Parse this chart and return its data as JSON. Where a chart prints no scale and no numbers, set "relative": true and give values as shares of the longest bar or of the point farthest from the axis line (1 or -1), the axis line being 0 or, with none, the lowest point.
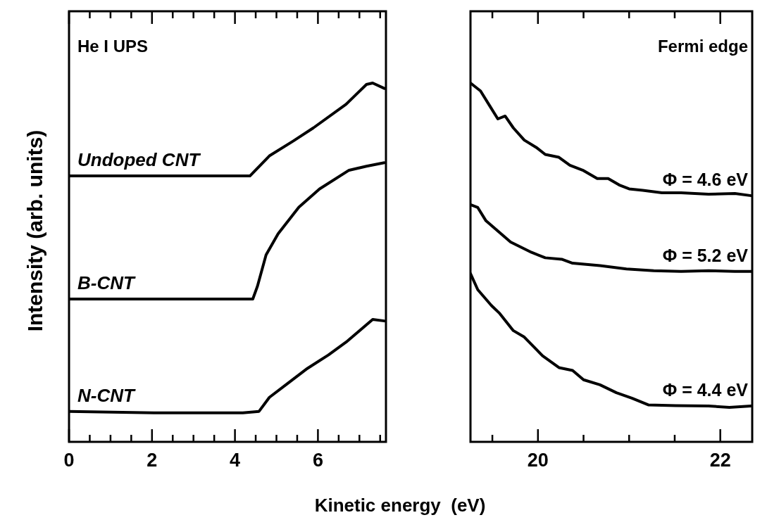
{
  "chart_data": [
    {
      "type": "line",
      "relative": true,
      "xlabel": "Kinetic energy  (eV)",
      "ylabel": "Intensity (arb. units)",
      "annotations": [
        "He I UPS"
      ],
      "marker": "none",
      "line_style": "solid",
      "xlim": [
        0,
        7.64
      ],
      "xticks": [
        0,
        {
          "value": 0.5,
          "label": null
        },
        {
          "value": 1,
          "label": null
        },
        {
          "value": 1.5,
          "label": null
        },
        2,
        {
          "value": 2.5,
          "label": null
        },
        {
          "value": 3,
          "label": null
        },
        {
          "value": 3.5,
          "label": null
        },
        4,
        {
          "value": 4.5,
          "label": null
        },
        {
          "value": 5,
          "label": null
        },
        {
          "value": 5.5,
          "label": null
        },
        6,
        {
          "value": 6.5,
          "label": null
        },
        {
          "value": 7,
          "label": null
        },
        {
          "value": 7.5,
          "label": null
        }
      ],
      "series": [
        {
          "name": "Undoped CNT",
          "color": "#000000",
          "x": [
            0,
            4.36,
            4.83,
            5.4,
            5.89,
            6.68,
            7.17,
            7.32,
            7.6
          ],
          "values": [
            0.741,
            0.741,
            0.797,
            0.838,
            0.875,
            0.941,
            0.996,
            1.0,
            0.985
          ]
        },
        {
          "name": "B-CNT",
          "color": "#000000",
          "x": [
            0,
            4.43,
            4.54,
            4.75,
            5.04,
            5.54,
            6.04,
            6.75,
            7.17,
            7.6
          ],
          "values": [
            0.398,
            0.398,
            0.433,
            0.521,
            0.58,
            0.654,
            0.705,
            0.757,
            0.768,
            0.778
          ]
        },
        {
          "name": "N-CNT",
          "color": "#000000",
          "x": [
            0,
            2.05,
            4.19,
            4.58,
            4.83,
            5.25,
            5.75,
            6.25,
            6.68,
            7.32,
            7.6
          ],
          "values": [
            0.085,
            0.081,
            0.081,
            0.085,
            0.124,
            0.161,
            0.205,
            0.242,
            0.278,
            0.341,
            0.337
          ]
        }
      ]
    },
    {
      "type": "line",
      "relative": true,
      "annotations": [
        "Fermi edge"
      ],
      "marker": "none",
      "line_style": "solid",
      "xlim": [
        19.26,
        22.35
      ],
      "xticks": [
        {
          "value": 19.5,
          "label": null
        },
        20,
        {
          "value": 20.5,
          "label": null
        },
        {
          "value": 21,
          "label": null
        },
        {
          "value": 21.5,
          "label": null
        },
        22
      ],
      "series": [
        {
          "name": "Φ = 4.6 eV",
          "color": "#000000",
          "x": [
            19.26,
            19.37,
            19.46,
            19.56,
            19.64,
            19.73,
            19.85,
            19.99,
            20.08,
            20.23,
            20.35,
            20.5,
            20.65,
            20.77,
            20.89,
            21.0,
            21.15,
            21.36,
            21.57,
            21.87,
            22.16,
            22.34
          ],
          "values": [
            1.0,
            0.978,
            0.941,
            0.9,
            0.908,
            0.875,
            0.841,
            0.819,
            0.801,
            0.793,
            0.771,
            0.756,
            0.734,
            0.734,
            0.716,
            0.705,
            0.701,
            0.694,
            0.694,
            0.69,
            0.692,
            0.686
          ]
        },
        {
          "name": "Φ = 5.2 eV",
          "color": "#000000",
          "x": [
            19.26,
            19.34,
            19.43,
            19.7,
            19.93,
            20.08,
            20.26,
            20.38,
            20.68,
            20.97,
            21.27,
            21.57,
            21.87,
            22.16,
            22.34
          ],
          "values": [
            0.661,
            0.653,
            0.616,
            0.557,
            0.528,
            0.513,
            0.509,
            0.498,
            0.491,
            0.482,
            0.477,
            0.475,
            0.477,
            0.475,
            0.475
          ]
        },
        {
          "name": "Φ = 4.4 eV",
          "color": "#000000",
          "x": [
            19.26,
            19.34,
            19.49,
            19.58,
            19.73,
            19.85,
            20.05,
            20.23,
            20.38,
            20.5,
            20.68,
            20.86,
            21.03,
            21.21,
            21.51,
            21.87,
            22.1,
            22.34
          ],
          "values": [
            0.469,
            0.424,
            0.38,
            0.358,
            0.31,
            0.292,
            0.24,
            0.207,
            0.199,
            0.173,
            0.159,
            0.137,
            0.122,
            0.103,
            0.101,
            0.1,
            0.096,
            0.1
          ]
        }
      ]
    }
  ]
}
